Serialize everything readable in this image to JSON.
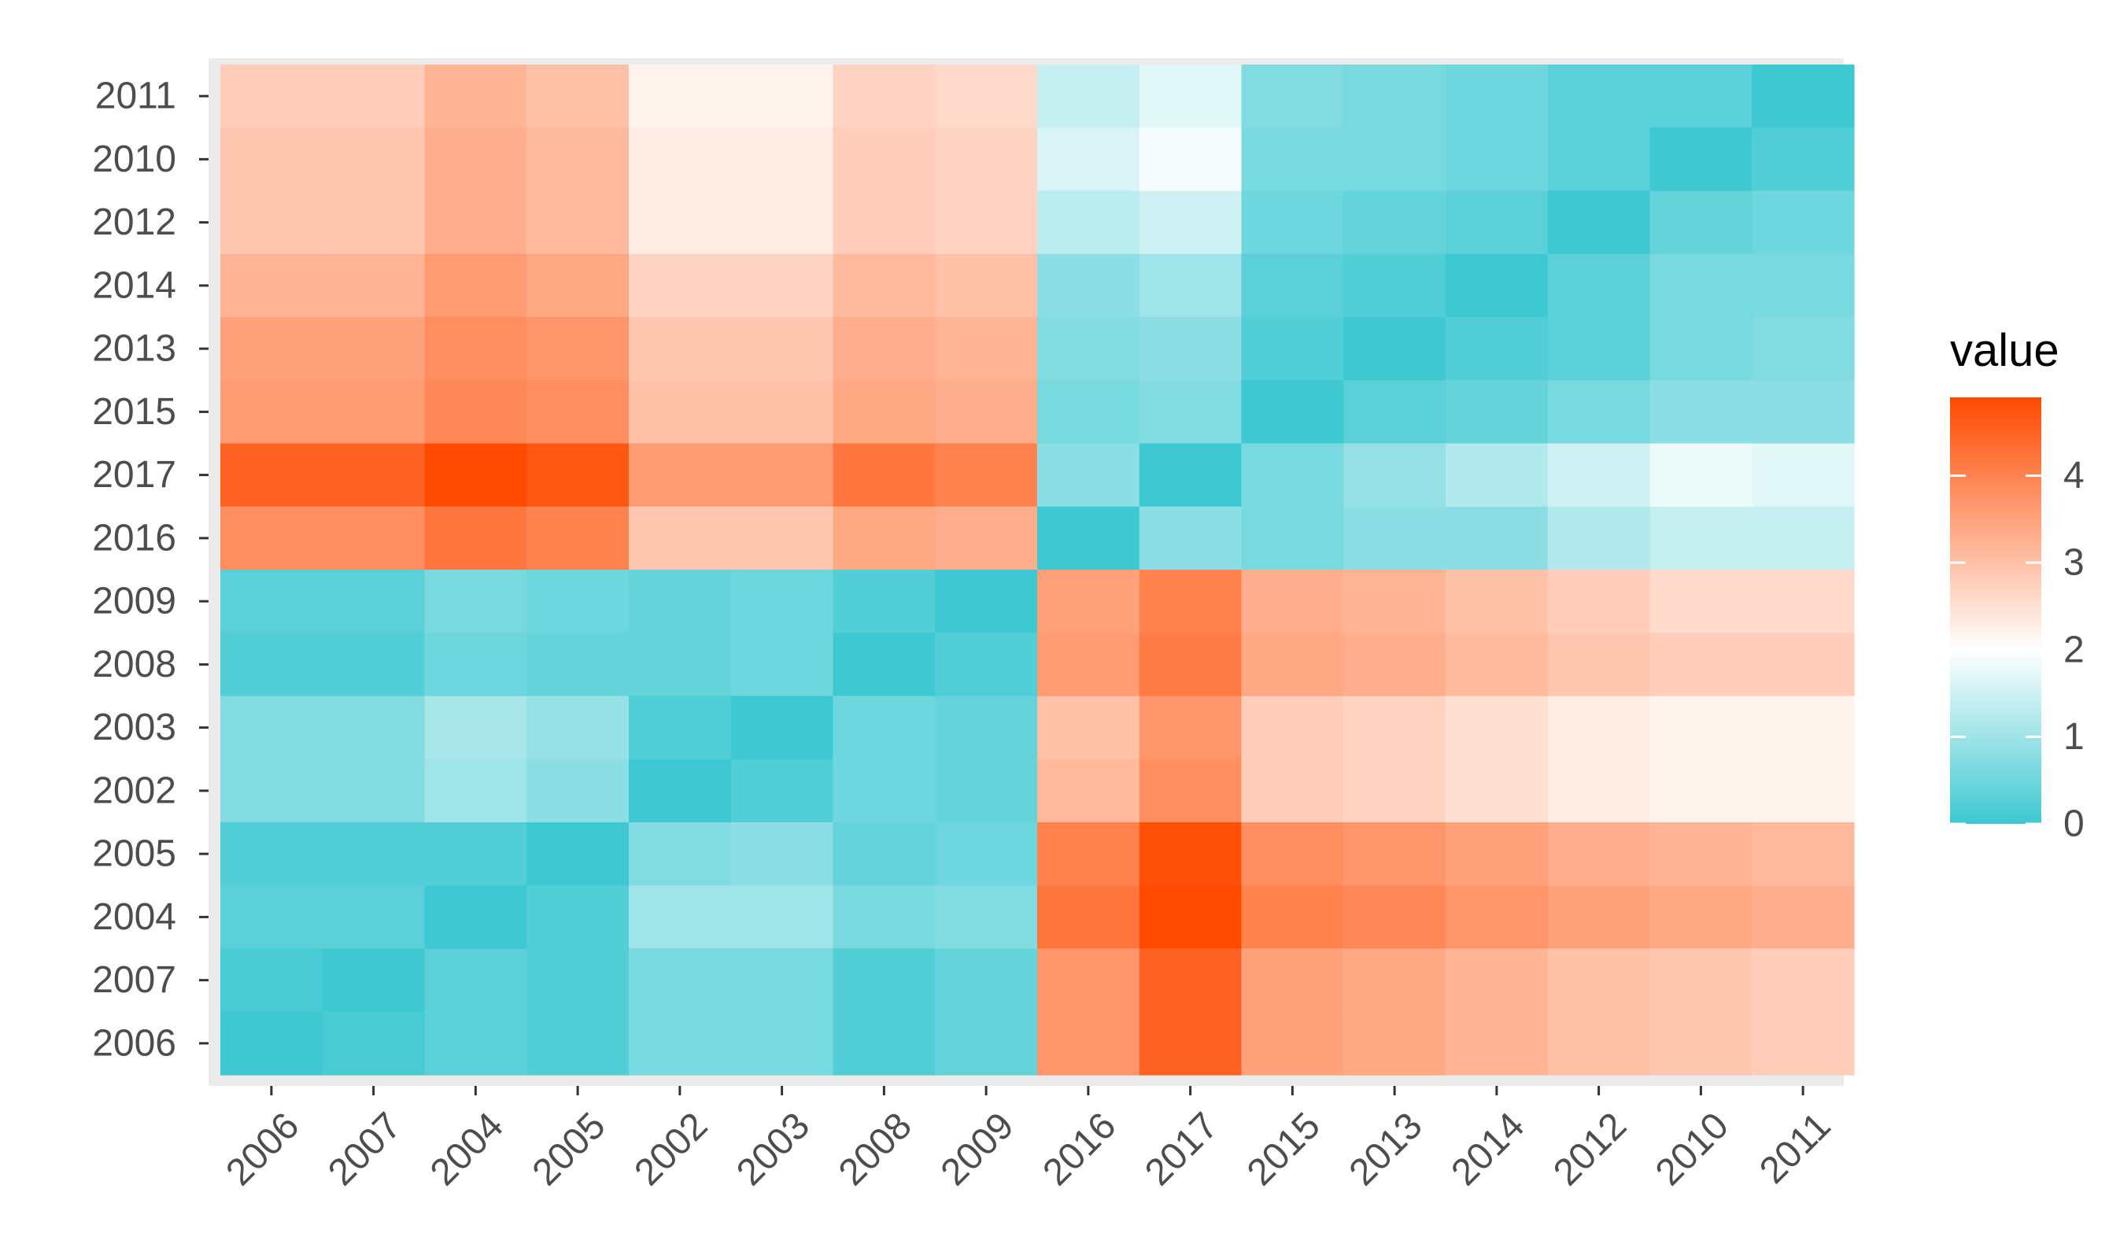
{
  "chart_data": {
    "type": "heatmap",
    "title": "",
    "xlabel": "",
    "ylabel": "",
    "x_categories": [
      "2006",
      "2007",
      "2004",
      "2005",
      "2002",
      "2003",
      "2008",
      "2009",
      "2016",
      "2017",
      "2015",
      "2013",
      "2014",
      "2012",
      "2010",
      "2011"
    ],
    "y_categories_top_to_bottom": [
      "2011",
      "2010",
      "2012",
      "2014",
      "2013",
      "2015",
      "2017",
      "2016",
      "2009",
      "2008",
      "2003",
      "2002",
      "2005",
      "2004",
      "2007",
      "2006"
    ],
    "values": [
      [
        2.8,
        2.8,
        3.2,
        3.0,
        2.2,
        2.2,
        2.7,
        2.6,
        1.4,
        1.7,
        0.7,
        0.6,
        0.5,
        0.3,
        0.3,
        0.0
      ],
      [
        2.9,
        2.9,
        3.3,
        3.1,
        2.3,
        2.3,
        2.8,
        2.7,
        1.6,
        1.9,
        0.6,
        0.6,
        0.5,
        0.3,
        0.0,
        0.2
      ],
      [
        2.9,
        2.9,
        3.3,
        3.1,
        2.3,
        2.3,
        2.8,
        2.7,
        1.3,
        1.5,
        0.5,
        0.4,
        0.3,
        0.0,
        0.4,
        0.5
      ],
      [
        3.2,
        3.2,
        3.6,
        3.4,
        2.7,
        2.7,
        3.1,
        3.0,
        0.8,
        1.0,
        0.3,
        0.2,
        0.0,
        0.3,
        0.6,
        0.6
      ],
      [
        3.5,
        3.5,
        3.8,
        3.7,
        2.9,
        2.9,
        3.3,
        3.2,
        0.7,
        0.8,
        0.2,
        0.0,
        0.2,
        0.3,
        0.6,
        0.7
      ],
      [
        3.6,
        3.6,
        3.9,
        3.8,
        3.0,
        3.0,
        3.4,
        3.3,
        0.6,
        0.7,
        0.0,
        0.3,
        0.4,
        0.6,
        0.8,
        0.8
      ],
      [
        4.5,
        4.5,
        4.9,
        4.7,
        3.6,
        3.6,
        4.2,
        4.0,
        0.8,
        0.0,
        0.6,
        0.9,
        1.2,
        1.5,
        1.8,
        1.7
      ],
      [
        3.8,
        3.8,
        4.2,
        4.0,
        2.9,
        2.9,
        3.4,
        3.3,
        0.0,
        0.8,
        0.6,
        0.8,
        0.8,
        1.2,
        1.4,
        1.4
      ],
      [
        0.3,
        0.3,
        0.6,
        0.5,
        0.4,
        0.5,
        0.2,
        0.0,
        3.5,
        4.0,
        3.3,
        3.2,
        3.0,
        2.8,
        2.6,
        2.6
      ],
      [
        0.2,
        0.2,
        0.5,
        0.4,
        0.4,
        0.5,
        0.0,
        0.2,
        3.6,
        4.1,
        3.4,
        3.3,
        3.1,
        2.9,
        2.8,
        2.8
      ],
      [
        0.7,
        0.7,
        1.1,
        0.9,
        0.2,
        0.0,
        0.5,
        0.4,
        3.0,
        3.7,
        2.8,
        2.7,
        2.5,
        2.3,
        2.2,
        2.2
      ],
      [
        0.7,
        0.7,
        1.0,
        0.8,
        0.0,
        0.2,
        0.5,
        0.4,
        3.1,
        3.8,
        2.8,
        2.7,
        2.5,
        2.3,
        2.2,
        2.2
      ],
      [
        0.2,
        0.2,
        0.2,
        0.0,
        0.7,
        0.8,
        0.4,
        0.5,
        4.0,
        4.8,
        3.8,
        3.7,
        3.5,
        3.3,
        3.2,
        3.1
      ],
      [
        0.3,
        0.3,
        0.0,
        0.2,
        1.0,
        1.0,
        0.6,
        0.7,
        4.2,
        4.9,
        4.0,
        3.9,
        3.7,
        3.5,
        3.4,
        3.3
      ],
      [
        0.1,
        0.0,
        0.3,
        0.2,
        0.6,
        0.6,
        0.2,
        0.4,
        3.7,
        4.5,
        3.5,
        3.4,
        3.2,
        3.0,
        2.9,
        2.8
      ],
      [
        0.0,
        0.1,
        0.3,
        0.2,
        0.6,
        0.6,
        0.2,
        0.4,
        3.7,
        4.5,
        3.5,
        3.4,
        3.2,
        3.0,
        2.9,
        2.8
      ]
    ],
    "legend": {
      "title": "value",
      "position": "right",
      "ticks": [
        "0",
        "1",
        "2",
        "3",
        "4"
      ],
      "tick_values": [
        0,
        1,
        2,
        3,
        4
      ],
      "range": [
        0,
        4.9
      ],
      "low_color": "#3ec8d1",
      "mid_color": "#ffffff",
      "high_color": "#ff4a00",
      "midpoint": 2.0
    },
    "panel_background": "#ebebeb",
    "grid": false
  }
}
